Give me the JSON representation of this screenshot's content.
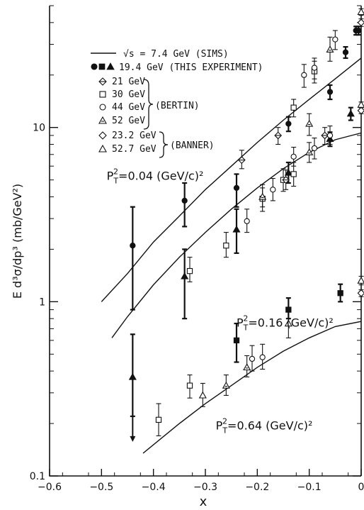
{
  "chart_data": {
    "type": "scatter",
    "xlabel": "x",
    "ylabel": "E d³σ/dp³ (mb/GeV²)",
    "xlim": [
      -0.6,
      0.0
    ],
    "ylim": [
      0.1,
      50
    ],
    "yscale": "log",
    "grid": false,
    "x_ticks": [
      {
        "value": -0.6,
        "label": "−0.6"
      },
      {
        "value": -0.5,
        "label": "−0.5"
      },
      {
        "value": -0.4,
        "label": "−0.4"
      },
      {
        "value": -0.3,
        "label": "−0.3"
      },
      {
        "value": -0.2,
        "label": "−0.2"
      },
      {
        "value": -0.1,
        "label": "−0.1"
      },
      {
        "value": 0.0,
        "label": "0"
      }
    ],
    "y_ticks": [
      {
        "value": 0.1,
        "label": "0.1"
      },
      {
        "value": 1,
        "label": "1"
      },
      {
        "value": 10,
        "label": "10"
      }
    ],
    "legend": {
      "placement": "top-left",
      "sims_label": "√s = 7.4 GeV (SIMS)",
      "this_label": "19.4 GeV (THIS EXPERIMENT)",
      "entries": [
        {
          "marker": "diamond-half",
          "label": "21 GeV"
        },
        {
          "marker": "square-open",
          "label": "30 GeV"
        },
        {
          "marker": "circle-open",
          "label": "44 GeV"
        },
        {
          "marker": "triangle-half",
          "label": "52 GeV"
        },
        {
          "marker": "diamond-open",
          "label": "23.2 GeV"
        },
        {
          "marker": "triangle-open",
          "label": "52.7 GeV"
        }
      ],
      "group_bertin": "(BERTIN)",
      "group_banner": "(BANNER)"
    },
    "annotations": [
      {
        "text": "P_T² = 0.04 (GeV/c)²",
        "x": -0.49,
        "y": 5.0
      },
      {
        "text": "P_T² = 0.16 (GeV/c)²",
        "x": -0.24,
        "y": 0.72
      },
      {
        "text": "P_T² = 0.64 (GeV/c)²",
        "x": -0.28,
        "y": 0.185
      }
    ],
    "curves": [
      {
        "name": "√s = 7.4 GeV (SIMS)",
        "pt2": 0.04,
        "points": [
          [
            -0.5,
            1.0
          ],
          [
            -0.45,
            1.45
          ],
          [
            -0.4,
            2.2
          ],
          [
            -0.35,
            3.1
          ],
          [
            -0.3,
            4.4
          ],
          [
            -0.25,
            6.0
          ],
          [
            -0.2,
            8.2
          ],
          [
            -0.15,
            11.0
          ],
          [
            -0.1,
            14.5
          ],
          [
            -0.05,
            19.0
          ],
          [
            0.0,
            25.0
          ]
        ]
      },
      {
        "name": "√s = 7.4 GeV (SIMS)",
        "pt2": 0.16,
        "points": [
          [
            -0.48,
            0.62
          ],
          [
            -0.45,
            0.82
          ],
          [
            -0.4,
            1.25
          ],
          [
            -0.35,
            1.8
          ],
          [
            -0.3,
            2.5
          ],
          [
            -0.25,
            3.4
          ],
          [
            -0.2,
            4.5
          ],
          [
            -0.15,
            5.8
          ],
          [
            -0.1,
            7.2
          ],
          [
            -0.05,
            8.5
          ],
          [
            0.0,
            9.3
          ]
        ]
      },
      {
        "name": "√s = 7.4 GeV (SIMS)",
        "pt2": 0.64,
        "points": [
          [
            -0.42,
            0.135
          ],
          [
            -0.35,
            0.2
          ],
          [
            -0.3,
            0.26
          ],
          [
            -0.25,
            0.33
          ],
          [
            -0.2,
            0.42
          ],
          [
            -0.15,
            0.52
          ],
          [
            -0.1,
            0.62
          ],
          [
            -0.05,
            0.72
          ],
          [
            0.0,
            0.77
          ]
        ]
      }
    ],
    "series": [
      {
        "name": "19.4 GeV (THIS EXPERIMENT)",
        "pt2": 0.04,
        "marker": "circle-filled",
        "points": [
          [
            -0.44,
            2.1,
            0.9,
            3.5
          ],
          [
            -0.34,
            3.8,
            2.7,
            4.8
          ],
          [
            -0.24,
            4.5,
            3.5,
            5.4
          ],
          [
            -0.14,
            10.5,
            9.5,
            11.5
          ],
          [
            -0.06,
            16.0,
            14.5,
            17.5
          ],
          [
            -0.03,
            27.0,
            25.0,
            29.0
          ],
          [
            -0.01,
            36.0,
            34.0,
            38.0
          ],
          [
            -0.005,
            36.0,
            34.0,
            38.0
          ]
        ]
      },
      {
        "name": "19.4 GeV (THIS EXPERIMENT)",
        "pt2": 0.16,
        "marker": "triangle-filled",
        "points": [
          [
            -0.44,
            0.37,
            0.22,
            0.65
          ],
          [
            -0.34,
            1.4,
            0.8,
            2.0
          ],
          [
            -0.24,
            2.6,
            1.9,
            3.4
          ],
          [
            -0.14,
            5.5,
            4.8,
            6.3
          ],
          [
            -0.06,
            8.6,
            7.8,
            9.4
          ],
          [
            -0.02,
            12.0,
            11.0,
            13.0
          ]
        ]
      },
      {
        "name": "19.4 GeV (THIS EXPERIMENT)",
        "pt2": 0.64,
        "marker": "square-filled",
        "points": [
          [
            -0.24,
            0.6,
            0.45,
            0.75
          ],
          [
            -0.14,
            0.9,
            0.8,
            1.05
          ],
          [
            -0.04,
            1.12,
            1.0,
            1.26
          ]
        ]
      },
      {
        "name": "21 GeV",
        "pt2": 0.04,
        "marker": "diamond-half",
        "points": [
          [
            -0.23,
            6.5,
            5.8,
            7.4
          ],
          [
            -0.16,
            9.0,
            8.0,
            10.0
          ],
          [
            -0.07,
            9.0,
            8.0,
            10.0
          ]
        ]
      },
      {
        "name": "30 GeV",
        "pt2": 0.04,
        "marker": "square-open",
        "points": [
          [
            -0.13,
            13.0,
            11.5,
            14.5
          ],
          [
            -0.09,
            21.0,
            18.0,
            24.0
          ]
        ]
      },
      {
        "name": "44 GeV",
        "pt2": 0.04,
        "marker": "circle-open",
        "points": [
          [
            -0.11,
            20.0,
            17.0,
            23.0
          ],
          [
            -0.09,
            22.0,
            19.0,
            25.0
          ],
          [
            -0.05,
            32.0,
            28.0,
            36.0
          ]
        ]
      },
      {
        "name": "52 GeV",
        "pt2": 0.04,
        "marker": "triangle-half",
        "points": [
          [
            -0.06,
            28.0,
            24.0,
            33.0
          ],
          [
            -0.1,
            10.5,
            9.0,
            12.0
          ]
        ]
      },
      {
        "name": "30 GeV",
        "pt2": 0.16,
        "marker": "square-open",
        "points": [
          [
            -0.33,
            1.5,
            1.3,
            1.8
          ],
          [
            -0.26,
            2.1,
            1.8,
            2.5
          ],
          [
            -0.19,
            3.9,
            3.3,
            4.5
          ],
          [
            -0.15,
            5.0,
            4.3,
            5.8
          ],
          [
            -0.13,
            5.4,
            4.6,
            6.3
          ]
        ]
      },
      {
        "name": "44 GeV",
        "pt2": 0.16,
        "marker": "circle-open",
        "points": [
          [
            -0.22,
            2.9,
            2.5,
            3.4
          ],
          [
            -0.17,
            4.4,
            3.8,
            5.1
          ],
          [
            -0.13,
            6.8,
            6.0,
            7.7
          ],
          [
            -0.09,
            7.6,
            6.6,
            8.7
          ],
          [
            -0.06,
            9.0,
            8.0,
            10.2
          ]
        ]
      },
      {
        "name": "52 GeV",
        "pt2": 0.16,
        "marker": "triangle-half",
        "points": [
          [
            -0.19,
            4.0,
            3.5,
            4.7
          ],
          [
            -0.1,
            7.2,
            6.3,
            8.2
          ]
        ]
      },
      {
        "name": "21 GeV",
        "pt2": 0.16,
        "marker": "diamond-half",
        "points": [
          [
            -0.145,
            5.0,
            4.4,
            5.7
          ]
        ]
      },
      {
        "name": "30 GeV",
        "pt2": 0.64,
        "marker": "square-open",
        "points": [
          [
            -0.39,
            0.21,
            0.17,
            0.26
          ],
          [
            -0.33,
            0.33,
            0.28,
            0.38
          ]
        ]
      },
      {
        "name": "44 GeV",
        "pt2": 0.64,
        "marker": "circle-open",
        "points": [
          [
            -0.21,
            0.47,
            0.4,
            0.56
          ],
          [
            -0.19,
            0.48,
            0.41,
            0.57
          ]
        ]
      },
      {
        "name": "52 GeV",
        "pt2": 0.64,
        "marker": "triangle-half",
        "points": [
          [
            -0.26,
            0.33,
            0.29,
            0.38
          ],
          [
            -0.22,
            0.42,
            0.37,
            0.49
          ]
        ]
      },
      {
        "name": "52.7 GeV",
        "pt2": 0.64,
        "marker": "triangle-open",
        "points": [
          [
            -0.305,
            0.29,
            0.25,
            0.34
          ],
          [
            -0.14,
            0.75,
            0.62,
            0.88
          ]
        ]
      },
      {
        "name": "23.2 GeV",
        "pt2": 0.04,
        "marker": "diamond-open",
        "points": [
          [
            0.0,
            40.0,
            38.0,
            42.0
          ]
        ]
      },
      {
        "name": "52.7 GeV",
        "pt2": 0.04,
        "marker": "triangle-open",
        "points": [
          [
            0.0,
            46.0,
            44.0,
            48.0
          ]
        ]
      },
      {
        "name": "23.2 GeV",
        "pt2": 0.16,
        "marker": "diamond-open",
        "points": [
          [
            0.0,
            12.5,
            12.0,
            13.0
          ]
        ]
      },
      {
        "name": "52.7 GeV",
        "pt2": 0.16,
        "marker": "triangle-open",
        "points": [
          [
            0.0,
            13.5,
            13.0,
            14.0
          ]
        ]
      },
      {
        "name": "23.2 GeV",
        "pt2": 0.64,
        "marker": "diamond-open",
        "points": [
          [
            0.0,
            1.12,
            1.07,
            1.17
          ]
        ]
      },
      {
        "name": "52.7 GeV",
        "pt2": 0.64,
        "marker": "triangle-open",
        "points": [
          [
            0.0,
            1.32,
            1.25,
            1.4
          ]
        ]
      }
    ]
  }
}
